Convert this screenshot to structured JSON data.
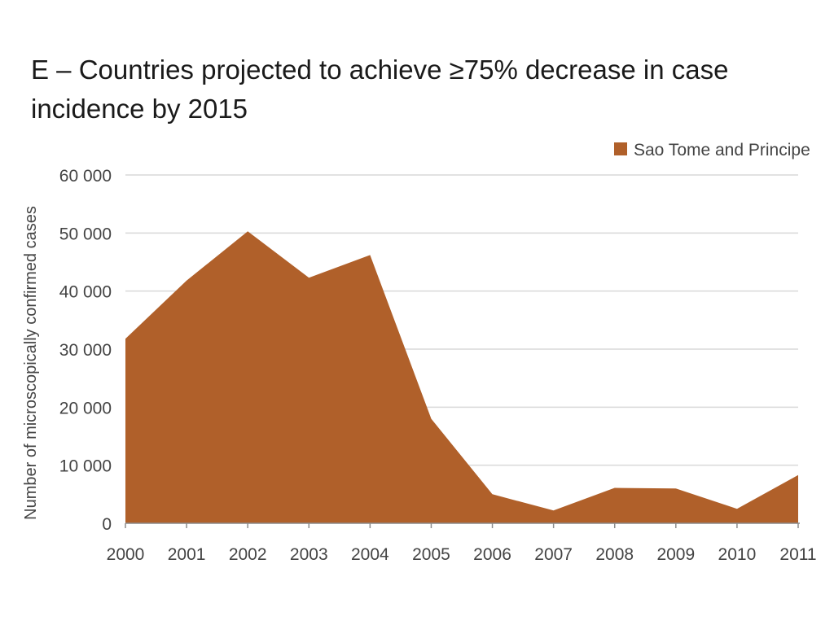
{
  "chart_data": {
    "type": "area",
    "title": "E – Countries projected to achieve ≥75% decrease in case incidence by 2015",
    "xlabel": "",
    "ylabel": "Number of microscopically confirmed cases",
    "x": [
      "2000",
      "2001",
      "2002",
      "2003",
      "2004",
      "2005",
      "2006",
      "2007",
      "2008",
      "2009",
      "2010",
      "2011"
    ],
    "series": [
      {
        "name": "Sao Tome and Principe",
        "color": "#b0602a",
        "values": [
          31800,
          41800,
          50300,
          42300,
          46200,
          18000,
          5000,
          2200,
          6100,
          6000,
          2500,
          8300
        ]
      }
    ],
    "ylim": [
      0,
      60000
    ],
    "yticks": [
      0,
      10000,
      20000,
      30000,
      40000,
      50000,
      60000
    ],
    "ytick_labels": [
      "0",
      "10 000",
      "20 000",
      "30 000",
      "40 000",
      "50 000",
      "60 000"
    ],
    "grid": true,
    "legend_position": "top-right"
  }
}
